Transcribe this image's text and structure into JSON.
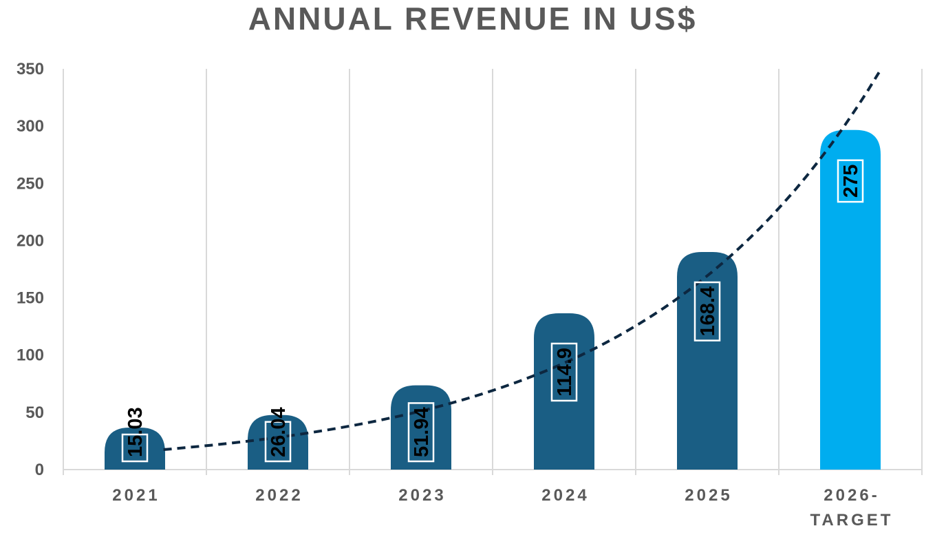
{
  "chart_data": {
    "type": "bar",
    "title": "ANNUAL REVENUE IN US$",
    "categories": [
      "2021",
      "2022",
      "2023",
      "2024",
      "2025",
      "2026-TARGET"
    ],
    "category_lines": [
      [
        "2021"
      ],
      [
        "2022"
      ],
      [
        "2023"
      ],
      [
        "2024"
      ],
      [
        "2025"
      ],
      [
        "2026-",
        "TARGET"
      ]
    ],
    "values": [
      15.03,
      26.04,
      51.94,
      114.9,
      168.4,
      275
    ],
    "data_labels": [
      "15.03",
      "26.04",
      "51.94",
      "114.9",
      "168.4",
      "275"
    ],
    "ylim": [
      0,
      350
    ],
    "yticks": [
      0,
      50,
      100,
      150,
      200,
      250,
      300,
      350
    ],
    "grid": "vertical",
    "trendline": {
      "type": "exponential",
      "style": "dashed",
      "color": "#0d2740"
    },
    "colors": {
      "bar": "#1a5e84",
      "highlight": "#00adef",
      "grid": "#d9d9d9",
      "text": "#595959"
    },
    "highlight_category": "2026-TARGET",
    "xlabel": "",
    "ylabel": ""
  }
}
